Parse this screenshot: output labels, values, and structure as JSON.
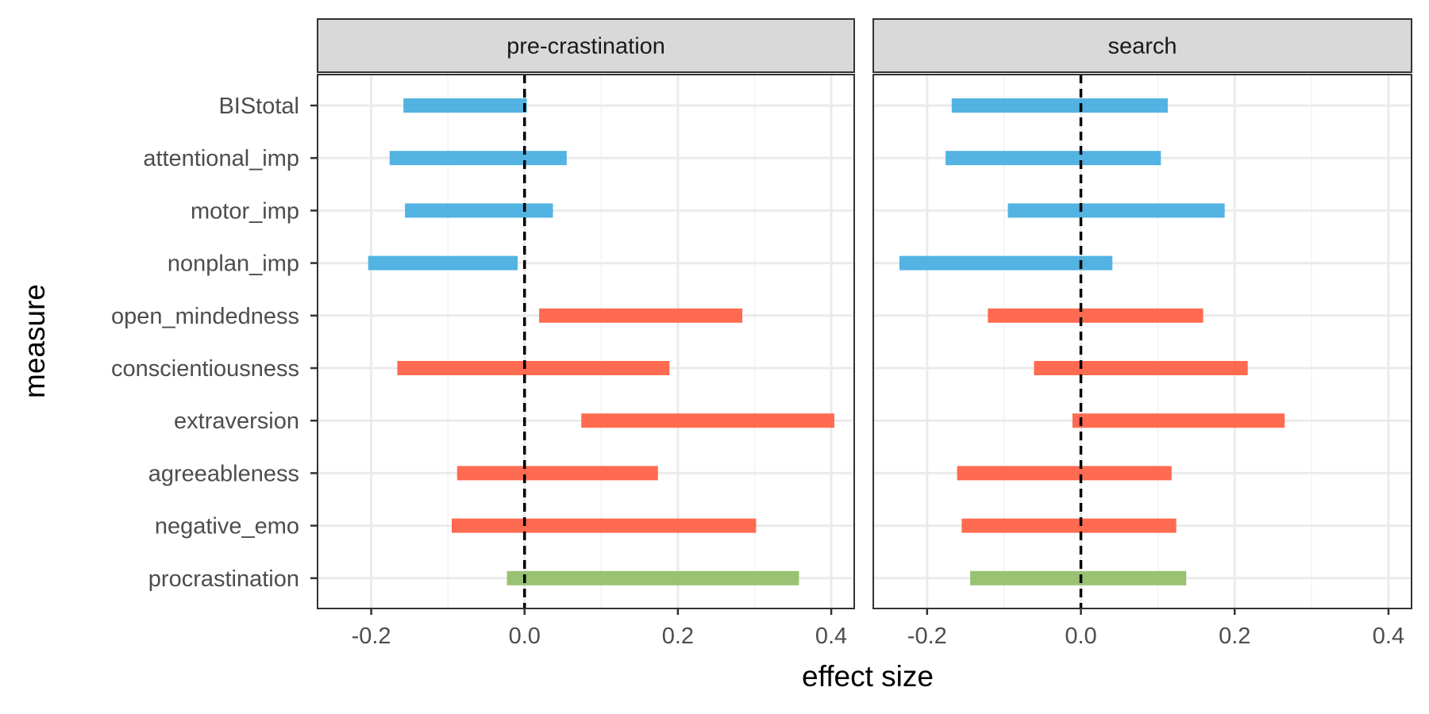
{
  "chart_data": {
    "type": "bar",
    "subtype": "interval-faceted",
    "xlabel": "effect size",
    "ylabel": "measure",
    "xlim": [
      -0.27,
      0.43
    ],
    "x_ticks": [
      "-0.2",
      "0.0",
      "0.2",
      "0.4"
    ],
    "x_tick_values": [
      -0.2,
      0.0,
      0.2,
      0.4
    ],
    "reference_line": 0,
    "grid": true,
    "legend": "none",
    "colors": {
      "impulsivity": "#4AAFE0",
      "personality": "#FF6347",
      "procrastination": "#93BF6B"
    },
    "categories": [
      "BIStotal",
      "attentional_imp",
      "motor_imp",
      "nonplan_imp",
      "open_mindedness",
      "conscientiousness",
      "extraversion",
      "agreeableness",
      "negative_emo",
      "procrastination"
    ],
    "groups": [
      "impulsivity",
      "impulsivity",
      "impulsivity",
      "impulsivity",
      "personality",
      "personality",
      "personality",
      "personality",
      "personality",
      "procrastination"
    ],
    "panels": [
      {
        "title": "pre-crastination",
        "intervals": [
          [
            -0.158,
            0.003
          ],
          [
            -0.176,
            0.055
          ],
          [
            -0.156,
            0.037
          ],
          [
            -0.204,
            -0.009
          ],
          [
            0.019,
            0.284
          ],
          [
            -0.166,
            0.189
          ],
          [
            0.074,
            0.404
          ],
          [
            -0.088,
            0.174
          ],
          [
            -0.095,
            0.302
          ],
          [
            -0.023,
            0.358
          ]
        ]
      },
      {
        "title": "search",
        "intervals": [
          [
            -0.168,
            0.113
          ],
          [
            -0.176,
            0.104
          ],
          [
            -0.095,
            0.187
          ],
          [
            -0.236,
            0.041
          ],
          [
            -0.121,
            0.159
          ],
          [
            -0.061,
            0.217
          ],
          [
            -0.011,
            0.265
          ],
          [
            -0.161,
            0.118
          ],
          [
            -0.155,
            0.124
          ],
          [
            -0.144,
            0.137
          ]
        ]
      }
    ]
  }
}
